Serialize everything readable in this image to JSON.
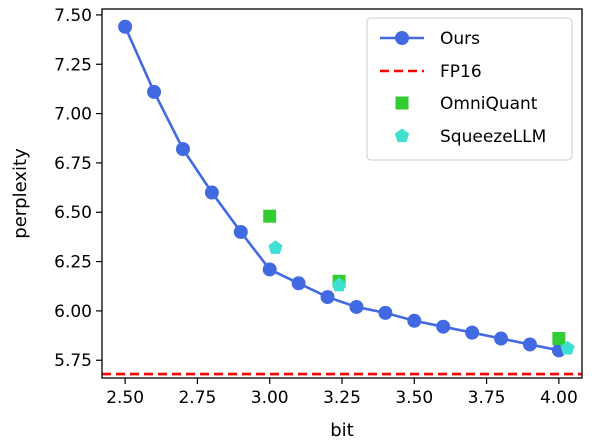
{
  "chart_data": {
    "type": "line",
    "xlabel": "bit",
    "ylabel": "perplexity",
    "xlim": [
      2.42,
      4.08
    ],
    "ylim": [
      5.66,
      7.53
    ],
    "xticks": [
      2.5,
      2.75,
      3.0,
      3.25,
      3.5,
      3.75,
      4.0
    ],
    "xtick_labels": [
      "2.50",
      "2.75",
      "3.00",
      "3.25",
      "3.50",
      "3.75",
      "4.00"
    ],
    "yticks": [
      5.75,
      6.0,
      6.25,
      6.5,
      6.75,
      7.0,
      7.25,
      7.5
    ],
    "ytick_labels": [
      "5.75",
      "6.00",
      "6.25",
      "6.50",
      "6.75",
      "7.00",
      "7.25",
      "7.50"
    ],
    "grid": false,
    "legend_position": "top-right",
    "series": [
      {
        "name": "Ours",
        "kind": "line-marker",
        "marker": "circle",
        "color": "#4169E1",
        "points": [
          [
            2.5,
            7.44
          ],
          [
            2.6,
            7.11
          ],
          [
            2.7,
            6.82
          ],
          [
            2.8,
            6.6
          ],
          [
            2.9,
            6.4
          ],
          [
            3.0,
            6.21
          ],
          [
            3.1,
            6.14
          ],
          [
            3.2,
            6.07
          ],
          [
            3.3,
            6.02
          ],
          [
            3.4,
            5.99
          ],
          [
            3.5,
            5.95
          ],
          [
            3.6,
            5.92
          ],
          [
            3.7,
            5.89
          ],
          [
            3.8,
            5.86
          ],
          [
            3.9,
            5.83
          ],
          [
            4.0,
            5.8
          ]
        ]
      },
      {
        "name": "FP16",
        "kind": "hline",
        "color": "#FF0000",
        "y": 5.68
      },
      {
        "name": "OmniQuant",
        "kind": "scatter",
        "marker": "square",
        "color": "#32CD32",
        "points": [
          [
            3.0,
            6.48
          ],
          [
            3.24,
            6.15
          ],
          [
            4.0,
            5.86
          ]
        ]
      },
      {
        "name": "SqueezeLLM",
        "kind": "scatter",
        "marker": "pentagon",
        "color": "#40E0D0",
        "points": [
          [
            3.02,
            6.32
          ],
          [
            3.24,
            6.13
          ],
          [
            4.03,
            5.81
          ]
        ]
      }
    ]
  }
}
